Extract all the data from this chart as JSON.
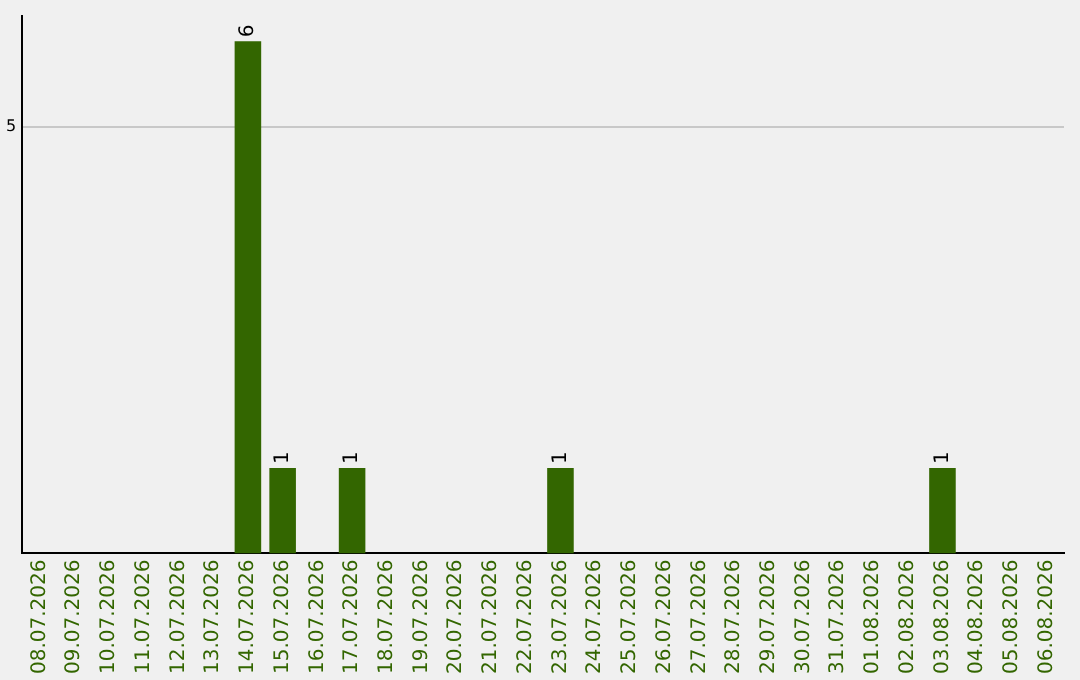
{
  "chart_data": {
    "type": "bar",
    "categories": [
      "08.07.2026",
      "09.07.2026",
      "10.07.2026",
      "11.07.2026",
      "12.07.2026",
      "13.07.2026",
      "14.07.2026",
      "15.07.2026",
      "16.07.2026",
      "17.07.2026",
      "18.07.2026",
      "19.07.2026",
      "20.07.2026",
      "21.07.2026",
      "22.07.2026",
      "23.07.2026",
      "24.07.2026",
      "25.07.2026",
      "26.07.2026",
      "27.07.2026",
      "28.07.2026",
      "29.07.2026",
      "30.07.2026",
      "31.07.2026",
      "01.08.2026",
      "02.08.2026",
      "03.08.2026",
      "04.08.2026",
      "05.08.2026",
      "06.08.2026"
    ],
    "values": [
      0,
      0,
      0,
      0,
      0,
      0,
      6,
      1,
      0,
      1,
      0,
      0,
      0,
      0,
      0,
      1,
      0,
      0,
      0,
      0,
      0,
      0,
      0,
      0,
      0,
      0,
      1,
      0,
      0,
      0
    ],
    "value_labels": [
      null,
      null,
      null,
      null,
      null,
      null,
      "6",
      "1",
      null,
      "1",
      null,
      null,
      null,
      null,
      null,
      "1",
      null,
      null,
      null,
      null,
      null,
      null,
      null,
      null,
      null,
      null,
      "1",
      null,
      null,
      null
    ],
    "color": "#336600",
    "ylim": [
      0,
      6.3
    ],
    "yticks": [
      5
    ],
    "grid": "y"
  }
}
